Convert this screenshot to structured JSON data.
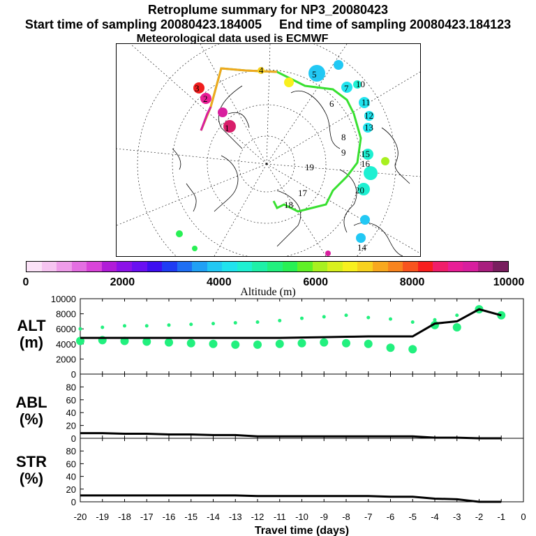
{
  "header": {
    "title": "Retroplume summary for NP3_20080423",
    "subtitle_start": "Start time of sampling 20080423.184005",
    "subtitle_end": "End time of sampling 20080423.184123",
    "met": "Meteorological data used is ECMWF"
  },
  "colorbar": {
    "label": "Altitude (m)",
    "ticks": [
      "0",
      "2000",
      "4000",
      "6000",
      "8000",
      "10000"
    ],
    "colors": [
      "#fbe2f7",
      "#f6c4f1",
      "#ee9ce9",
      "#e46fe2",
      "#d944d9",
      "#b11cd8",
      "#8c12e8",
      "#6a10f2",
      "#3e0ff0",
      "#1f3cf4",
      "#1f6ff4",
      "#20a0f5",
      "#22c8f4",
      "#20e3ee",
      "#1ef0d2",
      "#1ef0a8",
      "#22f07e",
      "#28f054",
      "#60f026",
      "#a8f020",
      "#d8f01e",
      "#f8f01e",
      "#f8d21e",
      "#f8a81e",
      "#f8841e",
      "#f8541e",
      "#f81e1e",
      "#f01e6a",
      "#e81e96",
      "#d81e9e",
      "#a81e7e",
      "#781e5e"
    ]
  },
  "map_labels": {
    "track_numbers": [
      "1",
      "2",
      "3",
      "4",
      "5",
      "6",
      "7",
      "8",
      "9",
      "10",
      "11",
      "12",
      "13",
      "14",
      "15",
      "16",
      "17",
      "18",
      "19",
      "20"
    ]
  },
  "chart_data": [
    {
      "type": "line",
      "panel": "ALT",
      "ylabel": "ALT\n(m)",
      "ylabel_line1": "ALT",
      "ylabel_line2": "(m)",
      "ylim": [
        0,
        10000
      ],
      "yticks": [
        "0",
        "2000",
        "4000",
        "6000",
        "8000",
        "10000"
      ],
      "x": [
        -20,
        -19,
        -18,
        -17,
        -16,
        -15,
        -14,
        -13,
        -12,
        -11,
        -10,
        -9,
        -8,
        -7,
        -6,
        -5,
        -4,
        -3,
        -2,
        -1
      ],
      "series": [
        {
          "name": "median altitude",
          "values": [
            4800,
            4800,
            4800,
            4800,
            4800,
            4800,
            4800,
            4800,
            4800,
            4800,
            4850,
            4900,
            4950,
            5000,
            5000,
            5000,
            6700,
            7000,
            8600,
            7800
          ]
        }
      ],
      "scatter": {
        "low": [
          4400,
          4500,
          4400,
          4300,
          4200,
          4100,
          4000,
          3900,
          3900,
          4000,
          4100,
          4200,
          4100,
          4000,
          3500,
          3300,
          6500,
          6200,
          8600,
          7800
        ],
        "high": [
          6000,
          6200,
          6400,
          6400,
          6500,
          6600,
          6700,
          6800,
          6900,
          7100,
          7400,
          7600,
          7800,
          7500,
          7300,
          6900,
          7200,
          7800,
          8700,
          8000
        ]
      }
    },
    {
      "type": "line",
      "panel": "ABL",
      "ylabel_line1": "ABL",
      "ylabel_line2": "(%)",
      "ylim": [
        0,
        100
      ],
      "yticks": [
        "0",
        "20",
        "40",
        "60",
        "80"
      ],
      "x": [
        -20,
        -19,
        -18,
        -17,
        -16,
        -15,
        -14,
        -13,
        -12,
        -11,
        -10,
        -9,
        -8,
        -7,
        -6,
        -5,
        -4,
        -3,
        -2,
        -1
      ],
      "series": [
        {
          "name": "ABL fraction",
          "values": [
            8,
            8,
            7,
            7,
            6,
            6,
            5,
            5,
            3,
            3,
            3,
            3,
            3,
            3,
            3,
            3,
            1,
            1,
            0,
            0
          ]
        }
      ]
    },
    {
      "type": "line",
      "panel": "STR",
      "ylabel_line1": "STR",
      "ylabel_line2": "(%)",
      "ylim": [
        0,
        100
      ],
      "yticks": [
        "0",
        "20",
        "40",
        "60",
        "80"
      ],
      "x": [
        -20,
        -19,
        -18,
        -17,
        -16,
        -15,
        -14,
        -13,
        -12,
        -11,
        -10,
        -9,
        -8,
        -7,
        -6,
        -5,
        -4,
        -3,
        -2,
        -1
      ],
      "series": [
        {
          "name": "stratospheric fraction",
          "values": [
            10,
            10,
            10,
            10,
            10,
            10,
            10,
            10,
            9,
            9,
            9,
            9,
            9,
            9,
            8,
            8,
            5,
            4,
            0,
            0
          ]
        }
      ],
      "xlabel": "Travel time (days)",
      "xticks": [
        "-20",
        "-19",
        "-18",
        "-17",
        "-16",
        "-15",
        "-14",
        "-13",
        "-12",
        "-11",
        "-10",
        "-9",
        "-8",
        "-7",
        "-6",
        "-5",
        "-4",
        "-3",
        "-2",
        "-1",
        "0"
      ]
    }
  ]
}
